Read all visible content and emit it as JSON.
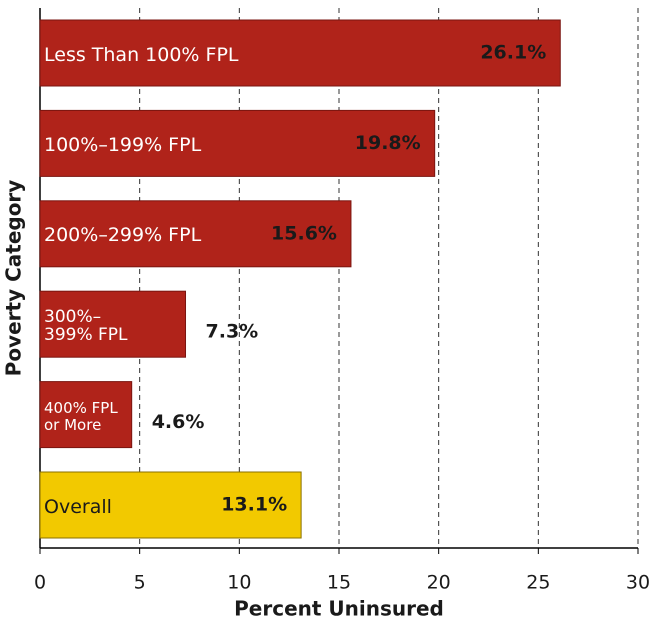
{
  "chart_data": {
    "type": "bar",
    "orientation": "horizontal",
    "categories": [
      "Less Than 100% FPL",
      "100%–199% FPL",
      "200%–299% FPL",
      "300%–\n399% FPL",
      "400% FPL\nor More",
      "Overall"
    ],
    "values": [
      26.1,
      19.8,
      15.6,
      7.3,
      4.6,
      13.1
    ],
    "value_labels": [
      "26.1%",
      "19.8%",
      "15.6%",
      "7.3%",
      "4.6%",
      "13.1%"
    ],
    "colors": [
      "#b0231a",
      "#b0231a",
      "#b0231a",
      "#b0231a",
      "#b0231a",
      "#f2c900"
    ],
    "xlim": [
      0,
      30
    ],
    "xticks": [
      0,
      5,
      10,
      15,
      20,
      25,
      30
    ],
    "xlabel": "Percent Uninsured",
    "ylabel": "Poverty Category",
    "grid": true
  }
}
